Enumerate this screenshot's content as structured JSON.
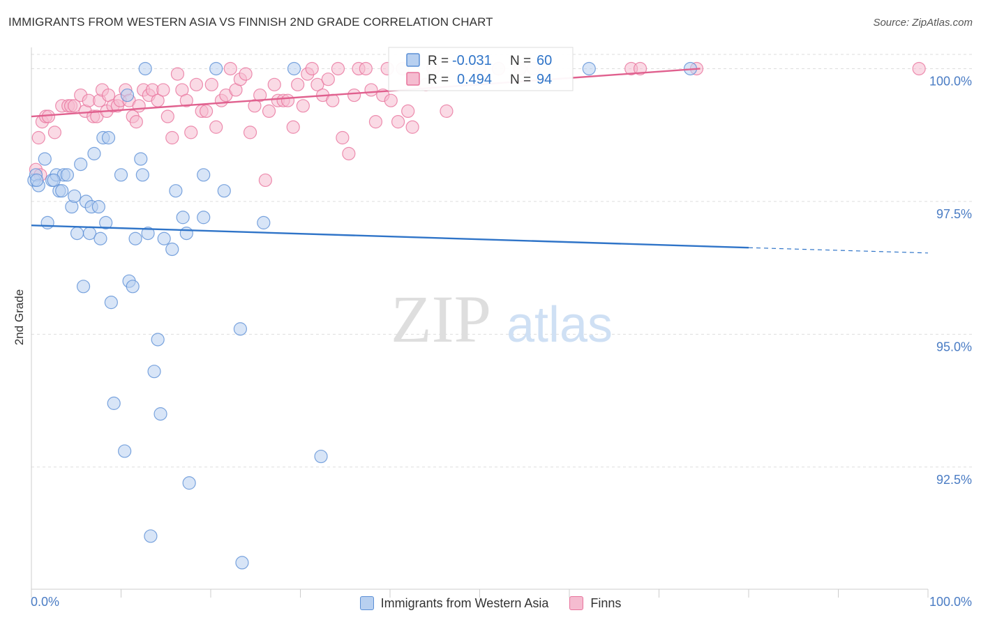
{
  "header": {
    "title": "IMMIGRANTS FROM WESTERN ASIA VS FINNISH 2ND GRADE CORRELATION CHART",
    "source": "Source: ZipAtlas.com"
  },
  "watermark": {
    "zip": "ZIP",
    "atlas": "atlas"
  },
  "colors": {
    "blue": "#5b8fd6",
    "blue_fill": "#b8d0f0",
    "blue_line": "#2f74c8",
    "pink": "#e8739c",
    "pink_fill": "#f5bcd0",
    "pink_line": "#e0608e",
    "tick_label": "#4a7cc4",
    "grid": "#dddddd"
  },
  "chart_data": {
    "type": "scatter",
    "title": "IMMIGRANTS FROM WESTERN ASIA VS FINNISH 2ND GRADE CORRELATION CHART",
    "xlabel": "",
    "ylabel": "2nd Grade",
    "xlim": [
      0,
      100
    ],
    "ylim": [
      90.2,
      100.4
    ],
    "x_tick_labels": [
      "0.0%",
      "100.0%"
    ],
    "y_ticks": [
      {
        "value": 100.0,
        "label": "100.0%"
      },
      {
        "value": 97.5,
        "label": "97.5%"
      },
      {
        "value": 95.0,
        "label": "95.0%"
      },
      {
        "value": 92.5,
        "label": "92.5%"
      }
    ],
    "legend": [
      {
        "name": "Immigrants from Western Asia",
        "r_label": "R =",
        "r_value": "-0.031",
        "n_label": "N =",
        "n_value": "60"
      },
      {
        "name": "Finns",
        "r_label": "R =",
        "r_value": "0.494",
        "n_label": "N =",
        "n_value": "94"
      }
    ],
    "series": [
      {
        "name": "Immigrants from Western Asia",
        "color": "blue",
        "trend": {
          "x1": 0,
          "y1": 97.05,
          "x2": 80,
          "y2": 96.63,
          "dash_to_x": 100,
          "dash_to_y": 96.53
        },
        "points": [
          [
            0.3,
            97.9
          ],
          [
            0.5,
            98.0
          ],
          [
            0.8,
            97.8
          ],
          [
            1.5,
            98.3
          ],
          [
            1.8,
            97.1
          ],
          [
            2.3,
            97.9
          ],
          [
            2.8,
            98.0
          ],
          [
            3.1,
            97.7
          ],
          [
            3.4,
            97.7
          ],
          [
            3.6,
            98.0
          ],
          [
            4.0,
            98.0
          ],
          [
            4.5,
            97.4
          ],
          [
            4.8,
            97.6
          ],
          [
            5.1,
            96.9
          ],
          [
            5.5,
            98.2
          ],
          [
            5.8,
            95.9
          ],
          [
            6.1,
            97.5
          ],
          [
            6.5,
            96.9
          ],
          [
            6.7,
            97.4
          ],
          [
            7.0,
            98.4
          ],
          [
            7.5,
            97.4
          ],
          [
            7.7,
            96.8
          ],
          [
            8.0,
            98.7
          ],
          [
            8.3,
            97.1
          ],
          [
            8.6,
            98.7
          ],
          [
            8.9,
            95.6
          ],
          [
            9.2,
            93.7
          ],
          [
            10.0,
            98.0
          ],
          [
            10.4,
            92.8
          ],
          [
            10.7,
            99.5
          ],
          [
            10.9,
            96.0
          ],
          [
            11.3,
            95.9
          ],
          [
            11.6,
            96.8
          ],
          [
            12.2,
            98.3
          ],
          [
            12.4,
            98.0
          ],
          [
            12.7,
            100.0
          ],
          [
            13.0,
            96.9
          ],
          [
            13.3,
            91.2
          ],
          [
            13.7,
            94.3
          ],
          [
            14.1,
            94.9
          ],
          [
            14.4,
            93.5
          ],
          [
            14.8,
            96.8
          ],
          [
            15.7,
            96.6
          ],
          [
            16.1,
            97.7
          ],
          [
            16.9,
            97.2
          ],
          [
            17.3,
            96.9
          ],
          [
            17.6,
            92.2
          ],
          [
            19.2,
            98.0
          ],
          [
            19.2,
            97.2
          ],
          [
            20.6,
            100.0
          ],
          [
            21.5,
            97.7
          ],
          [
            23.3,
            95.1
          ],
          [
            23.5,
            90.7
          ],
          [
            25.9,
            97.1
          ],
          [
            29.3,
            100.0
          ],
          [
            32.3,
            92.7
          ],
          [
            62.2,
            100.0
          ],
          [
            73.5,
            100.0
          ],
          [
            0.6,
            97.9
          ],
          [
            2.5,
            97.9
          ]
        ]
      },
      {
        "name": "Finns",
        "color": "pink",
        "trend": {
          "x1": 0,
          "y1": 99.1,
          "x2": 74.6,
          "y2": 100.0
        },
        "points": [
          [
            0.5,
            98.1
          ],
          [
            0.8,
            98.7
          ],
          [
            1.0,
            98.0
          ],
          [
            1.2,
            99.0
          ],
          [
            1.6,
            99.1
          ],
          [
            1.9,
            99.1
          ],
          [
            2.6,
            98.8
          ],
          [
            3.4,
            99.3
          ],
          [
            4.1,
            99.3
          ],
          [
            4.4,
            99.3
          ],
          [
            4.8,
            99.3
          ],
          [
            5.5,
            99.5
          ],
          [
            6.0,
            99.2
          ],
          [
            6.4,
            99.4
          ],
          [
            6.9,
            99.1
          ],
          [
            7.3,
            99.1
          ],
          [
            7.6,
            99.4
          ],
          [
            7.9,
            99.6
          ],
          [
            8.4,
            99.2
          ],
          [
            8.6,
            99.5
          ],
          [
            9.1,
            99.3
          ],
          [
            9.6,
            99.3
          ],
          [
            9.9,
            99.4
          ],
          [
            10.5,
            99.6
          ],
          [
            10.9,
            99.4
          ],
          [
            11.3,
            99.1
          ],
          [
            11.7,
            99.0
          ],
          [
            12.0,
            99.3
          ],
          [
            12.5,
            99.6
          ],
          [
            13.1,
            99.5
          ],
          [
            13.5,
            99.6
          ],
          [
            14.1,
            99.4
          ],
          [
            14.7,
            99.6
          ],
          [
            15.2,
            99.1
          ],
          [
            15.7,
            98.7
          ],
          [
            16.3,
            99.9
          ],
          [
            16.8,
            99.6
          ],
          [
            17.3,
            99.4
          ],
          [
            17.8,
            98.8
          ],
          [
            18.4,
            99.7
          ],
          [
            19.0,
            99.2
          ],
          [
            19.5,
            99.2
          ],
          [
            20.1,
            99.7
          ],
          [
            20.6,
            98.9
          ],
          [
            21.2,
            99.4
          ],
          [
            21.7,
            99.5
          ],
          [
            22.2,
            100.0
          ],
          [
            22.8,
            99.6
          ],
          [
            23.3,
            99.8
          ],
          [
            23.9,
            99.9
          ],
          [
            24.4,
            98.8
          ],
          [
            24.9,
            99.3
          ],
          [
            25.5,
            99.5
          ],
          [
            26.1,
            97.9
          ],
          [
            26.5,
            99.2
          ],
          [
            27.1,
            99.7
          ],
          [
            27.5,
            99.4
          ],
          [
            28.1,
            99.4
          ],
          [
            28.6,
            99.4
          ],
          [
            29.2,
            98.9
          ],
          [
            29.7,
            99.7
          ],
          [
            30.3,
            99.3
          ],
          [
            30.8,
            99.9
          ],
          [
            31.3,
            100.0
          ],
          [
            31.9,
            99.7
          ],
          [
            32.5,
            99.5
          ],
          [
            33.1,
            99.8
          ],
          [
            33.6,
            99.4
          ],
          [
            34.2,
            100.0
          ],
          [
            34.7,
            98.7
          ],
          [
            35.4,
            98.4
          ],
          [
            36.0,
            99.5
          ],
          [
            36.5,
            100.0
          ],
          [
            37.3,
            100.0
          ],
          [
            37.9,
            99.6
          ],
          [
            38.4,
            99.0
          ],
          [
            39.2,
            99.5
          ],
          [
            39.7,
            100.0
          ],
          [
            40.1,
            99.4
          ],
          [
            40.9,
            99.0
          ],
          [
            41.4,
            100.0
          ],
          [
            42.0,
            99.2
          ],
          [
            42.5,
            98.9
          ],
          [
            44.0,
            99.7
          ],
          [
            44.8,
            100.0
          ],
          [
            46.3,
            99.2
          ],
          [
            50.0,
            100.0
          ],
          [
            52.1,
            100.0
          ],
          [
            54.5,
            100.0
          ],
          [
            56.0,
            100.0
          ],
          [
            66.9,
            100.0
          ],
          [
            67.9,
            100.0
          ],
          [
            74.2,
            100.0
          ],
          [
            99.0,
            100.0
          ]
        ]
      }
    ]
  }
}
